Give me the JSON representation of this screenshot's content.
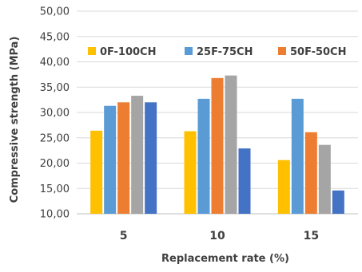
{
  "chart_data": {
    "type": "bar",
    "title": "",
    "xlabel": "Replacement rate (%)",
    "ylabel": "Compressive strength (MPa)",
    "ylim": [
      10,
      50
    ],
    "yticks": [
      "10,00",
      "15,00",
      "20,00",
      "25,00",
      "30,00",
      "35,00",
      "40,00",
      "45,00",
      "50,00"
    ],
    "grid": true,
    "legend_position": "top",
    "categories": [
      "5",
      "10",
      "15"
    ],
    "series": [
      {
        "name": "0F-100CH",
        "color": "#FFC000",
        "values": [
          26.4,
          26.3,
          20.6
        ]
      },
      {
        "name": "25F-75CH",
        "color": "#5B9BD5",
        "values": [
          31.3,
          32.7,
          32.7
        ]
      },
      {
        "name": "50F-50CH",
        "color": "#ED7D31",
        "values": [
          32.0,
          36.8,
          26.1
        ]
      },
      {
        "name": "",
        "color": "#A5A5A5",
        "values": [
          33.3,
          37.3,
          23.6
        ]
      },
      {
        "name": "",
        "color": "#4472C4",
        "values": [
          32.0,
          22.9,
          14.6
        ]
      }
    ]
  }
}
